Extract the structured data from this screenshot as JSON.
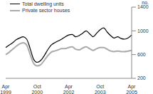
{
  "chart_data": {
    "type": "line",
    "ylabel": "no.",
    "x": [
      "Apr 1999",
      null,
      null,
      null,
      null,
      null,
      null,
      null,
      null,
      "Oct 2000",
      null,
      null,
      null,
      null,
      null,
      null,
      null,
      null,
      "Apr 2002",
      null,
      null,
      null,
      null,
      null,
      null,
      null,
      null,
      "Oct 2003",
      null,
      null,
      null,
      null,
      null,
      null,
      null,
      null,
      "Apr 2005"
    ],
    "series": [
      {
        "name": "Total dwelling units",
        "color": "#000000",
        "values": [
          720,
          760,
          800,
          850,
          880,
          900,
          860,
          700,
          520,
          470,
          500,
          580,
          680,
          760,
          800,
          830,
          860,
          900,
          930,
          940,
          900,
          920,
          960,
          1000,
          950,
          900,
          960,
          1020,
          1050,
          980,
          920,
          880,
          900,
          870,
          860,
          880,
          930
        ]
      },
      {
        "name": "Private sector houses",
        "color": "#aaaaaa",
        "values": [
          600,
          640,
          690,
          740,
          780,
          800,
          760,
          600,
          450,
          410,
          430,
          500,
          580,
          640,
          660,
          680,
          700,
          700,
          720,
          730,
          690,
          680,
          710,
          730,
          700,
          670,
          700,
          720,
          720,
          690,
          660,
          650,
          660,
          650,
          650,
          660,
          670
        ]
      }
    ],
    "ylim": [
      200,
      1400
    ],
    "yticks": [
      200,
      600,
      1000,
      1400
    ],
    "grid": false,
    "legend": "upper left"
  }
}
